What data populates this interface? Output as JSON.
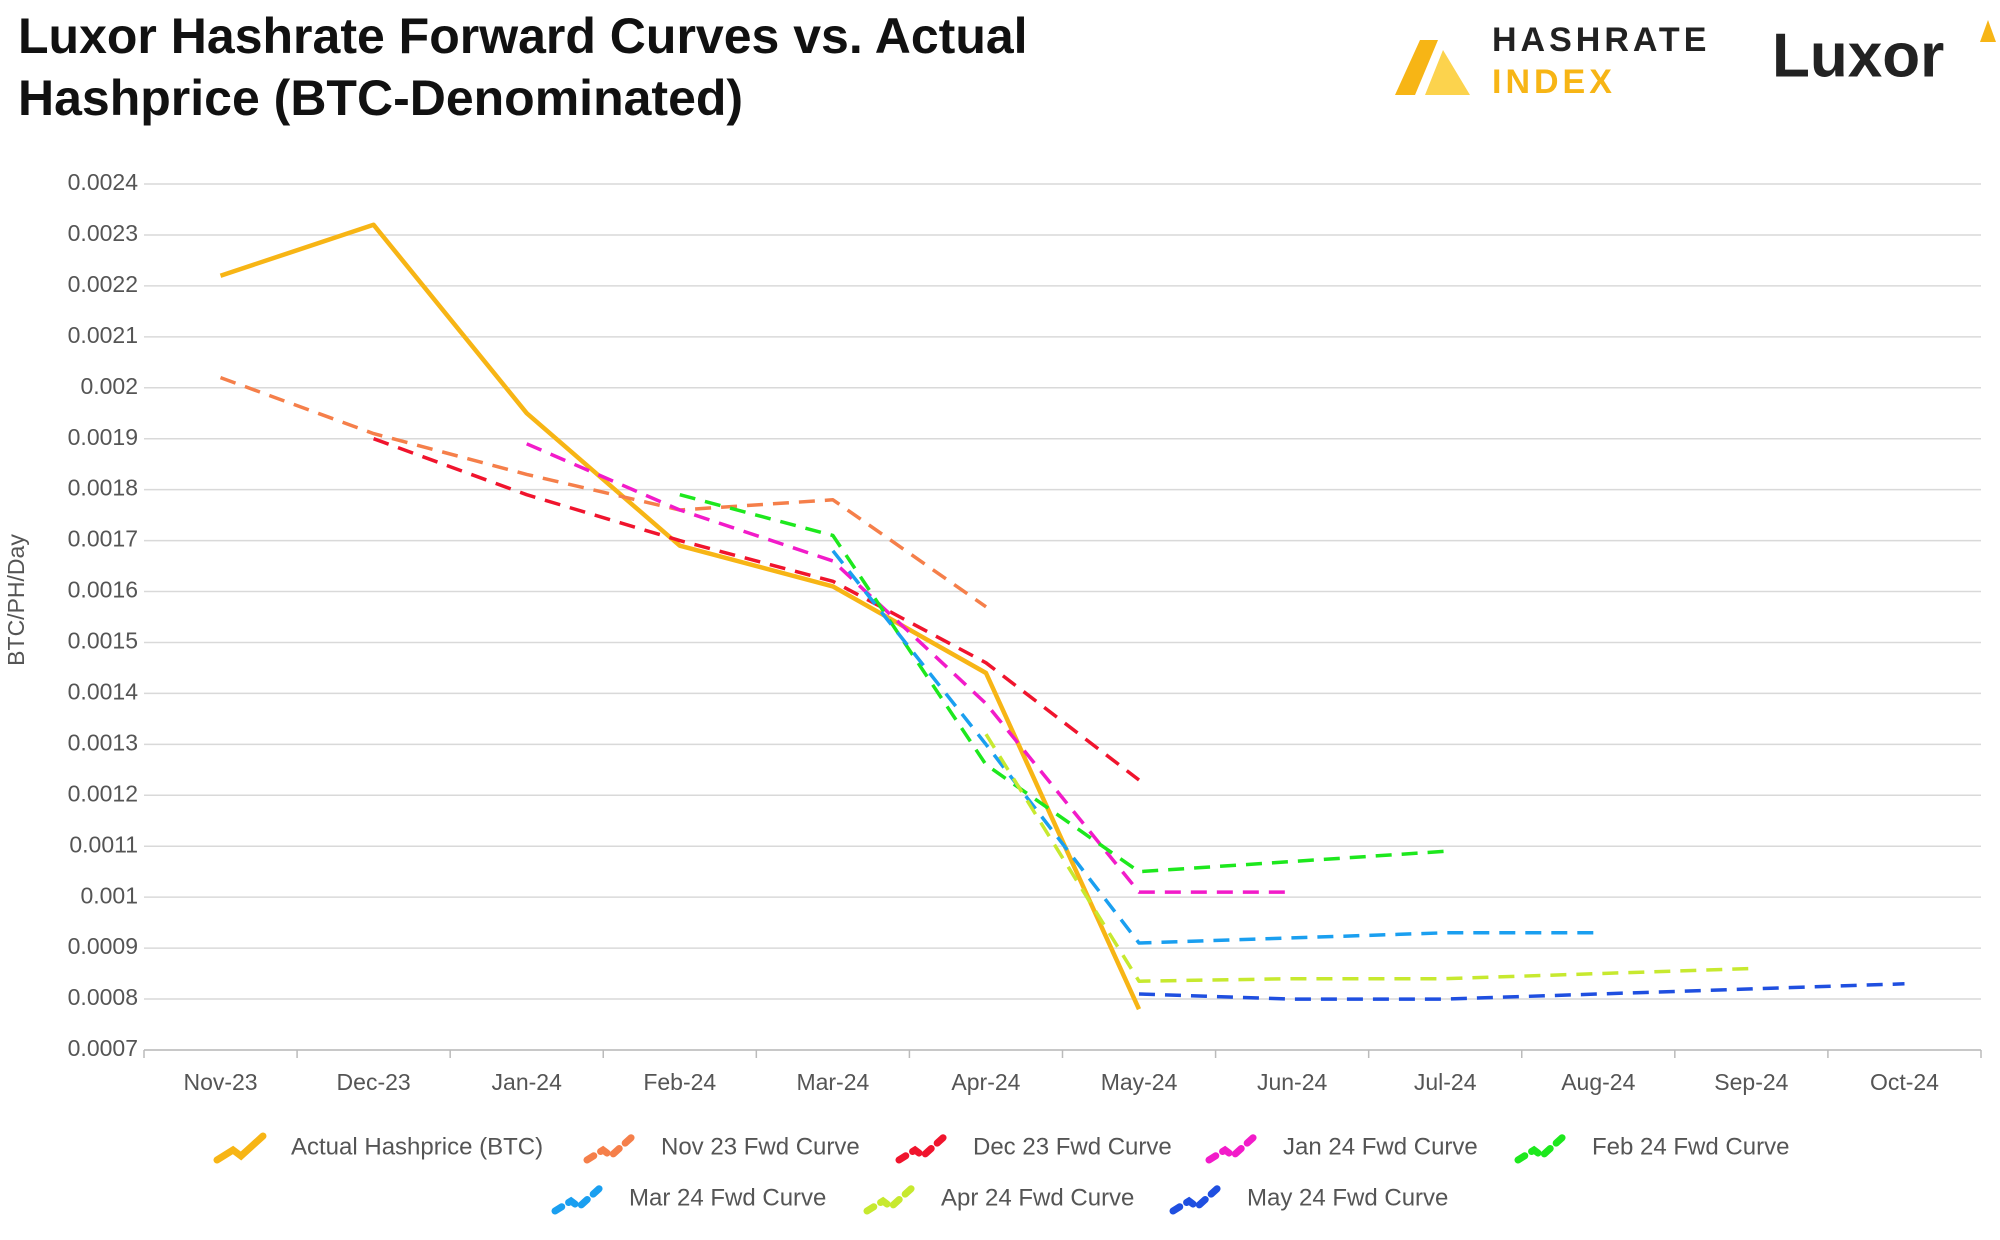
{
  "chart_data": {
    "type": "line",
    "title": "Luxor Hashrate Forward Curves vs. Actual Hashprice (BTC-Denominated)",
    "y_label": "BTC/PH/Day",
    "categories": [
      "Nov-23",
      "Dec-23",
      "Jan-24",
      "Feb-24",
      "Mar-24",
      "Apr-24",
      "May-24",
      "Jun-24",
      "Jul-24",
      "Aug-24",
      "Sep-24",
      "Oct-24"
    ],
    "ylim": [
      0.0007,
      0.0024
    ],
    "yticks": [
      0.0007,
      0.0008,
      0.0009,
      0.001,
      0.0011,
      0.0012,
      0.0013,
      0.0014,
      0.0015,
      0.0016,
      0.0017,
      0.0018,
      0.0019,
      0.002,
      0.0021,
      0.0022,
      0.0023,
      0.0024
    ],
    "grid": true,
    "legend": "bottom",
    "series": [
      {
        "name": "Actual Hashprice (BTC)",
        "color": "#f7b515",
        "dashed": false,
        "values": [
          0.00222,
          0.00232,
          0.00195,
          0.00169,
          0.00161,
          0.00144,
          0.00078,
          null,
          null,
          null,
          null,
          null
        ]
      },
      {
        "name": "Nov 23 Fwd Curve",
        "color": "#f57f4a",
        "dashed": true,
        "values": [
          0.00202,
          0.00191,
          0.00183,
          0.00176,
          0.00178,
          0.00157,
          null,
          null,
          null,
          null,
          null,
          null
        ]
      },
      {
        "name": "Dec 23 Fwd Curve",
        "color": "#f0142d",
        "dashed": true,
        "values": [
          null,
          0.0019,
          0.00179,
          0.0017,
          0.00162,
          0.00146,
          0.00123,
          null,
          null,
          null,
          null,
          null
        ]
      },
      {
        "name": "Jan 24 Fwd Curve",
        "color": "#f21bc9",
        "dashed": true,
        "values": [
          null,
          null,
          0.00189,
          0.00176,
          0.00166,
          0.00138,
          0.00101,
          0.00101,
          null,
          null,
          null,
          null
        ]
      },
      {
        "name": "Feb 24 Fwd Curve",
        "color": "#1de81d",
        "dashed": true,
        "values": [
          null,
          null,
          null,
          0.00179,
          0.00171,
          0.00126,
          0.00105,
          0.00107,
          0.00109,
          null,
          null,
          null
        ]
      },
      {
        "name": "Mar 24 Fwd Curve",
        "color": "#1a9ff0",
        "dashed": true,
        "values": [
          null,
          null,
          null,
          null,
          0.00168,
          0.0013,
          0.00091,
          0.00092,
          0.00093,
          0.00093,
          null,
          null
        ]
      },
      {
        "name": "Apr 24 Fwd Curve",
        "color": "#c7e92f",
        "dashed": true,
        "values": [
          null,
          null,
          null,
          null,
          null,
          0.00132,
          0.000835,
          0.00084,
          0.00084,
          0.00085,
          0.00086,
          null
        ]
      },
      {
        "name": "May 24 Fwd Curve",
        "color": "#1f4fe0",
        "dashed": true,
        "values": [
          null,
          null,
          null,
          null,
          null,
          null,
          0.00081,
          0.0008,
          0.0008,
          0.00081,
          0.00082,
          0.00083
        ]
      }
    ]
  },
  "branding": {
    "index_top": "HASHRATE",
    "index_bottom": "INDEX",
    "company": "Luxor"
  }
}
